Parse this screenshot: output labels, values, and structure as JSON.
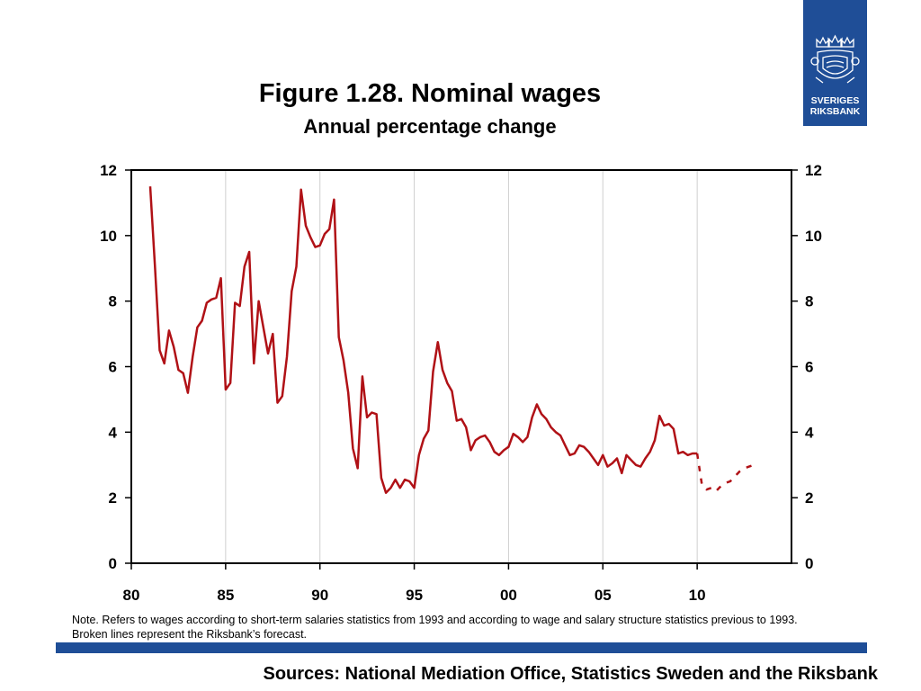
{
  "header": {
    "title": "Figure 1.28. Nominal wages",
    "subtitle": "Annual percentage change"
  },
  "logo": {
    "line1": "SVERIGES",
    "line2": "RIKSBANK",
    "color": "#1f4e97",
    "icon": "crown-shield-emblem-icon"
  },
  "chart_data": {
    "type": "line",
    "ylim": [
      0,
      12
    ],
    "xlim": [
      1980,
      2015
    ],
    "y_ticks": [
      "0",
      "2",
      "4",
      "6",
      "8",
      "10",
      "12"
    ],
    "y_ticks_right": [
      "0",
      "2",
      "4",
      "6",
      "8",
      "10",
      "12"
    ],
    "x_ticks": [
      "80",
      "85",
      "90",
      "95",
      "00",
      "05",
      "10"
    ],
    "x_tick_values": [
      1980,
      1985,
      1990,
      1995,
      2000,
      2005,
      2010
    ],
    "grid": "vertical",
    "line_color": "#b01116",
    "series": [
      {
        "style": "solid",
        "x": [
          1981.0,
          1981.25,
          1981.5,
          1981.75,
          1982.0,
          1982.25,
          1982.5,
          1982.75,
          1983.0,
          1983.25,
          1983.5,
          1983.75,
          1984.0,
          1984.25,
          1984.5,
          1984.75,
          1985.0,
          1985.25,
          1985.5,
          1985.75,
          1986.0,
          1986.25,
          1986.5,
          1986.75,
          1987.0,
          1987.25,
          1987.5,
          1987.75,
          1988.0,
          1988.25,
          1988.5,
          1988.75,
          1989.0,
          1989.25,
          1989.5,
          1989.75,
          1990.0,
          1990.25,
          1990.5,
          1990.75,
          1991.0,
          1991.25,
          1991.5,
          1991.75,
          1992.0,
          1992.25,
          1992.5,
          1992.75,
          1993.0,
          1993.25,
          1993.5,
          1993.75,
          1994.0,
          1994.25,
          1994.5,
          1994.75,
          1995.0,
          1995.25,
          1995.5,
          1995.75,
          1996.0,
          1996.25,
          1996.5,
          1996.75,
          1997.0,
          1997.25,
          1997.5,
          1997.75,
          1998.0,
          1998.25,
          1998.5,
          1998.75,
          1999.0,
          1999.25,
          1999.5,
          1999.75,
          2000.0,
          2000.25,
          2000.5,
          2000.75,
          2001.0,
          2001.25,
          2001.5,
          2001.75,
          2002.0,
          2002.25,
          2002.5,
          2002.75,
          2003.0,
          2003.25,
          2003.5,
          2003.75,
          2004.0,
          2004.25,
          2004.5,
          2004.75,
          2005.0,
          2005.25,
          2005.5,
          2005.75,
          2006.0,
          2006.25,
          2006.5,
          2006.75,
          2007.0,
          2007.25,
          2007.5,
          2007.75,
          2008.0,
          2008.25,
          2008.5,
          2008.75,
          2009.0,
          2009.25,
          2009.5,
          2009.75,
          2010.0
        ],
        "y": [
          11.5,
          9.1,
          6.5,
          6.1,
          7.1,
          6.6,
          5.9,
          5.8,
          5.2,
          6.3,
          7.2,
          7.4,
          7.95,
          8.05,
          8.1,
          8.7,
          5.3,
          5.5,
          7.95,
          7.85,
          9.05,
          9.5,
          6.1,
          8.0,
          7.2,
          6.4,
          7.0,
          4.9,
          5.1,
          6.3,
          8.3,
          9.05,
          11.4,
          10.3,
          9.95,
          9.65,
          9.7,
          10.05,
          10.2,
          11.1,
          6.9,
          6.2,
          5.2,
          3.5,
          2.9,
          5.7,
          4.45,
          4.6,
          4.55,
          2.6,
          2.15,
          2.3,
          2.55,
          2.3,
          2.55,
          2.5,
          2.3,
          3.3,
          3.8,
          4.05,
          5.85,
          6.75,
          5.9,
          5.5,
          5.25,
          4.35,
          4.4,
          4.15,
          3.45,
          3.75,
          3.85,
          3.9,
          3.7,
          3.4,
          3.3,
          3.45,
          3.55,
          3.95,
          3.85,
          3.7,
          3.85,
          4.45,
          4.85,
          4.55,
          4.4,
          4.15,
          4.0,
          3.9,
          3.6,
          3.3,
          3.35,
          3.6,
          3.55,
          3.4,
          3.2,
          3.0,
          3.3,
          2.95,
          3.05,
          3.2,
          2.75,
          3.3,
          3.15,
          3.0,
          2.95,
          3.2,
          3.4,
          3.75,
          4.5,
          4.2,
          4.25,
          4.1,
          3.35,
          3.4,
          3.3,
          3.35,
          3.35
        ]
      },
      {
        "style": "dashed",
        "x": [
          2010.0,
          2010.25,
          2010.5,
          2010.75,
          2011.0,
          2011.25,
          2011.5,
          2011.75,
          2012.0,
          2012.25,
          2012.5,
          2012.75,
          2013.0
        ],
        "y": [
          3.35,
          2.4,
          2.25,
          2.3,
          2.2,
          2.35,
          2.45,
          2.5,
          2.65,
          2.8,
          2.9,
          2.95,
          3.0
        ]
      }
    ]
  },
  "note": {
    "line1": "Note. Refers to wages according to short-term salaries statistics from 1993 and according to wage and salary structure statistics previous to 1993.",
    "line2": "Broken lines represent the Riksbank’s forecast."
  },
  "footer": {
    "bar_color": "#1f4e97",
    "sources": "Sources: National Mediation Office, Statistics Sweden and the Riksbank"
  }
}
